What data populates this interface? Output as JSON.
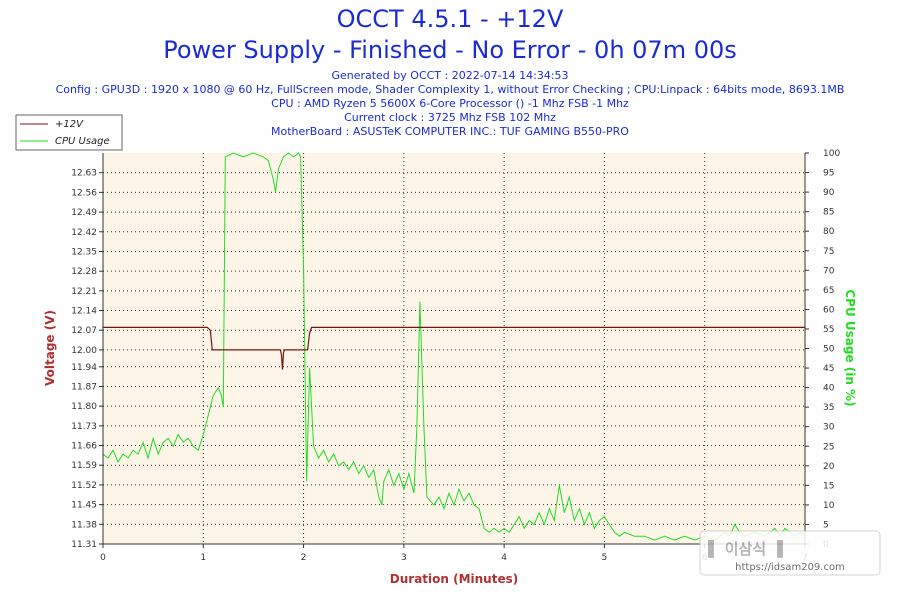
{
  "header": {
    "title": "OCCT 4.5.1 - +12V",
    "subtitle": "Power Supply - Finished - No Error - 0h 07m 00s",
    "generated": "Generated by OCCT : 2022-07-14 14:34:53",
    "config": "Config : GPU3D : 1920 x 1080 @ 60 Hz, FullScreen mode, Shader Complexity 1, without Error Checking ; CPU:Linpack : 64bits mode, 8693.1MB",
    "cpu": "CPU : AMD Ryzen 5 5600X 6-Core Processor () -1 Mhz FSB -1 Mhz",
    "clock": "Current clock : 3725 Mhz FSB 102 Mhz",
    "motherboard": "MotherBoard : ASUSTeK COMPUTER INC.: TUF GAMING B550-PRO"
  },
  "watermark": "https://idsam209.com",
  "colors": {
    "voltage": "#7a1414",
    "cpu": "#22dd22",
    "plot_bg": "#fdf6e8",
    "text": "#1a2bd6",
    "axis_label": "#b03030"
  },
  "chart_data": {
    "type": "line",
    "xlabel": "Duration (Minutes)",
    "ylabel_left": "Voltage (V)",
    "ylabel_right": "CPU Usage (in %)",
    "xlim": [
      0,
      7
    ],
    "ylim_left": [
      11.31,
      12.7
    ],
    "ylim_right": [
      0,
      100
    ],
    "x_ticks": [
      "0",
      "1",
      "2",
      "3",
      "4",
      "5",
      "6",
      "7"
    ],
    "y_left_ticks": [
      "11.31",
      "11.38",
      "11.45",
      "11.52",
      "11.59",
      "11.66",
      "11.73",
      "11.80",
      "11.87",
      "11.94",
      "12.00",
      "12.07",
      "12.14",
      "12.21",
      "12.28",
      "12.35",
      "12.42",
      "12.49",
      "12.56",
      "12.63"
    ],
    "y_right_ticks": [
      "0",
      "5",
      "10",
      "15",
      "20",
      "25",
      "30",
      "35",
      "40",
      "45",
      "50",
      "55",
      "60",
      "65",
      "70",
      "75",
      "80",
      "85",
      "90",
      "95",
      "100"
    ],
    "grid": true,
    "legend_position": "top-left",
    "series": [
      {
        "name": "+12V",
        "axis": "left",
        "points": [
          [
            0,
            12.08
          ],
          [
            1.04,
            12.08
          ],
          [
            1.07,
            12.07
          ],
          [
            1.09,
            12.0
          ],
          [
            1.77,
            12.0
          ],
          [
            1.78,
            11.98
          ],
          [
            1.79,
            11.93
          ],
          [
            1.8,
            11.99
          ],
          [
            1.81,
            12.0
          ],
          [
            2.04,
            12.0
          ],
          [
            2.06,
            12.06
          ],
          [
            2.08,
            12.08
          ],
          [
            7,
            12.08
          ]
        ]
      },
      {
        "name": "CPU Usage",
        "axis": "right",
        "points": [
          [
            0,
            23
          ],
          [
            0.05,
            22
          ],
          [
            0.1,
            24
          ],
          [
            0.15,
            21
          ],
          [
            0.2,
            23
          ],
          [
            0.25,
            22
          ],
          [
            0.3,
            24
          ],
          [
            0.35,
            23
          ],
          [
            0.4,
            26
          ],
          [
            0.45,
            22
          ],
          [
            0.5,
            27
          ],
          [
            0.55,
            23
          ],
          [
            0.6,
            26
          ],
          [
            0.65,
            27
          ],
          [
            0.7,
            25
          ],
          [
            0.75,
            28
          ],
          [
            0.8,
            26
          ],
          [
            0.85,
            27
          ],
          [
            0.9,
            25
          ],
          [
            0.95,
            24
          ],
          [
            1.0,
            28
          ],
          [
            1.05,
            33
          ],
          [
            1.1,
            38
          ],
          [
            1.15,
            40
          ],
          [
            1.18,
            38
          ],
          [
            1.2,
            35
          ],
          [
            1.22,
            99
          ],
          [
            1.3,
            100
          ],
          [
            1.4,
            99
          ],
          [
            1.5,
            100
          ],
          [
            1.6,
            99
          ],
          [
            1.65,
            98
          ],
          [
            1.7,
            93
          ],
          [
            1.72,
            90
          ],
          [
            1.75,
            96
          ],
          [
            1.8,
            99
          ],
          [
            1.85,
            100
          ],
          [
            1.9,
            99
          ],
          [
            1.95,
            100
          ],
          [
            1.97,
            99
          ],
          [
            2.0,
            70
          ],
          [
            2.03,
            16
          ],
          [
            2.06,
            45
          ],
          [
            2.08,
            35
          ],
          [
            2.1,
            25
          ],
          [
            2.15,
            22
          ],
          [
            2.2,
            24
          ],
          [
            2.25,
            21
          ],
          [
            2.3,
            23
          ],
          [
            2.35,
            20
          ],
          [
            2.4,
            21
          ],
          [
            2.45,
            19
          ],
          [
            2.5,
            21
          ],
          [
            2.55,
            18
          ],
          [
            2.6,
            20
          ],
          [
            2.65,
            17
          ],
          [
            2.7,
            19
          ],
          [
            2.75,
            12
          ],
          [
            2.78,
            10
          ],
          [
            2.8,
            16
          ],
          [
            2.85,
            19
          ],
          [
            2.9,
            15
          ],
          [
            2.95,
            18
          ],
          [
            3.0,
            14
          ],
          [
            3.05,
            18
          ],
          [
            3.1,
            13
          ],
          [
            3.13,
            30
          ],
          [
            3.16,
            62
          ],
          [
            3.2,
            30
          ],
          [
            3.23,
            12
          ],
          [
            3.3,
            10
          ],
          [
            3.35,
            12
          ],
          [
            3.4,
            9
          ],
          [
            3.45,
            13
          ],
          [
            3.5,
            10
          ],
          [
            3.55,
            14
          ],
          [
            3.6,
            11
          ],
          [
            3.65,
            13
          ],
          [
            3.7,
            10
          ],
          [
            3.75,
            9
          ],
          [
            3.8,
            4
          ],
          [
            3.85,
            3
          ],
          [
            3.9,
            4
          ],
          [
            3.95,
            3
          ],
          [
            4.0,
            4
          ],
          [
            4.05,
            3
          ],
          [
            4.1,
            5
          ],
          [
            4.15,
            7
          ],
          [
            4.2,
            4
          ],
          [
            4.25,
            6
          ],
          [
            4.3,
            5
          ],
          [
            4.35,
            8
          ],
          [
            4.4,
            5
          ],
          [
            4.45,
            9
          ],
          [
            4.5,
            6
          ],
          [
            4.55,
            15
          ],
          [
            4.6,
            8
          ],
          [
            4.65,
            12
          ],
          [
            4.7,
            6
          ],
          [
            4.75,
            9
          ],
          [
            4.8,
            5
          ],
          [
            4.85,
            8
          ],
          [
            4.9,
            4
          ],
          [
            4.95,
            6
          ],
          [
            5.0,
            7
          ],
          [
            5.05,
            5
          ],
          [
            5.1,
            3
          ],
          [
            5.15,
            2
          ],
          [
            5.2,
            3
          ],
          [
            5.3,
            2
          ],
          [
            5.4,
            2
          ],
          [
            5.5,
            1
          ],
          [
            5.6,
            2
          ],
          [
            5.7,
            1
          ],
          [
            5.8,
            2
          ],
          [
            5.9,
            1
          ],
          [
            6.0,
            2
          ],
          [
            6.1,
            1
          ],
          [
            6.2,
            3
          ],
          [
            6.25,
            2
          ],
          [
            6.3,
            5
          ],
          [
            6.35,
            3
          ],
          [
            6.4,
            2
          ],
          [
            6.5,
            3
          ],
          [
            6.6,
            2
          ],
          [
            6.7,
            4
          ],
          [
            6.75,
            2
          ],
          [
            6.8,
            4
          ],
          [
            6.85,
            3
          ],
          [
            6.9,
            2
          ],
          [
            6.95,
            3
          ],
          [
            7.0,
            2
          ]
        ]
      }
    ]
  }
}
